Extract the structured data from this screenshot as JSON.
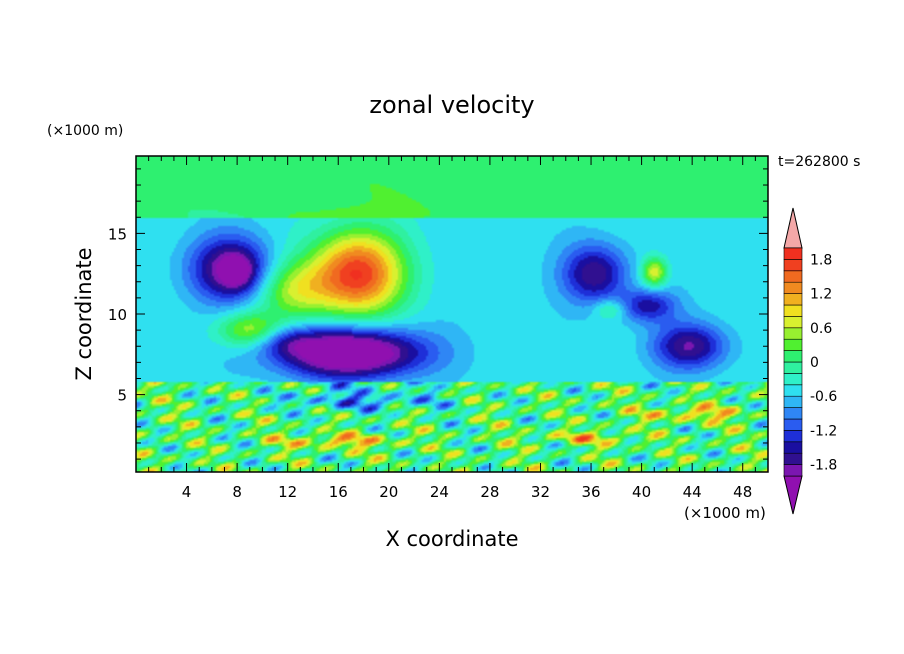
{
  "chart_data": {
    "type": "heatmap",
    "title": "zonal velocity",
    "xlabel": "X coordinate",
    "ylabel": "Z coordinate",
    "x_units": "(×1000 m)",
    "y_units": "(×1000 m)",
    "time_label": "t=262800 s",
    "xlim": [
      0,
      50
    ],
    "ylim": [
      0.2,
      19.8
    ],
    "x_ticks": [
      "4",
      "8",
      "12",
      "16",
      "20",
      "24",
      "28",
      "32",
      "36",
      "40",
      "44",
      "48"
    ],
    "y_ticks": [
      "5",
      "10",
      "15"
    ],
    "colorbar": {
      "tick_labels": [
        "1.8",
        "1.2",
        "0.6",
        "0",
        "-0.6",
        "-1.2",
        "-1.8"
      ],
      "levels": [
        -2.0,
        -1.8,
        -1.6,
        -1.4,
        -1.2,
        -1.0,
        -0.8,
        -0.6,
        -0.4,
        -0.2,
        0,
        0.2,
        0.4,
        0.6,
        0.8,
        1.0,
        1.2,
        1.4,
        1.6,
        1.8,
        2.0
      ],
      "colors": [
        "#7b16b0",
        "#301090",
        "#1a0fa0",
        "#1e2fd8",
        "#2a5cf0",
        "#2f86f5",
        "#2fb6f5",
        "#2fe0f0",
        "#2ff0c8",
        "#2ff0a0",
        "#2ef070",
        "#50f030",
        "#98f030",
        "#d8f030",
        "#f0e020",
        "#f0b020",
        "#f08a20",
        "#f06a20",
        "#f04020",
        "#f03020"
      ],
      "under_color": "#9010b0",
      "over_color": "#f4a8a8"
    },
    "features": [
      {
        "x": 8,
        "z": 12.8,
        "value": -1.8
      },
      {
        "x": 17.5,
        "z": 11.8,
        "value": 2.0
      },
      {
        "x": 17,
        "z": 8.2,
        "value": -1.8
      },
      {
        "x": 36.3,
        "z": 12.5,
        "value": -1.6
      },
      {
        "x": 41,
        "z": 12.5,
        "value": 0.8
      },
      {
        "x": 40.5,
        "z": 10.5,
        "value": -1.4
      },
      {
        "x": 43.5,
        "z": 8.0,
        "value": -1.6
      },
      {
        "x": 9,
        "z": 9.0,
        "value": 0.8
      },
      {
        "x": 10,
        "z": 4.0,
        "value": 0.8
      },
      {
        "x": 16,
        "z": 2.1,
        "value": 1.4
      },
      {
        "x": 44,
        "z": 3.8,
        "value": 1.2
      },
      {
        "x": 36,
        "z": 2.3,
        "value": 1.2
      },
      {
        "x": 30,
        "z": 17.5,
        "value": 0.0
      }
    ]
  }
}
